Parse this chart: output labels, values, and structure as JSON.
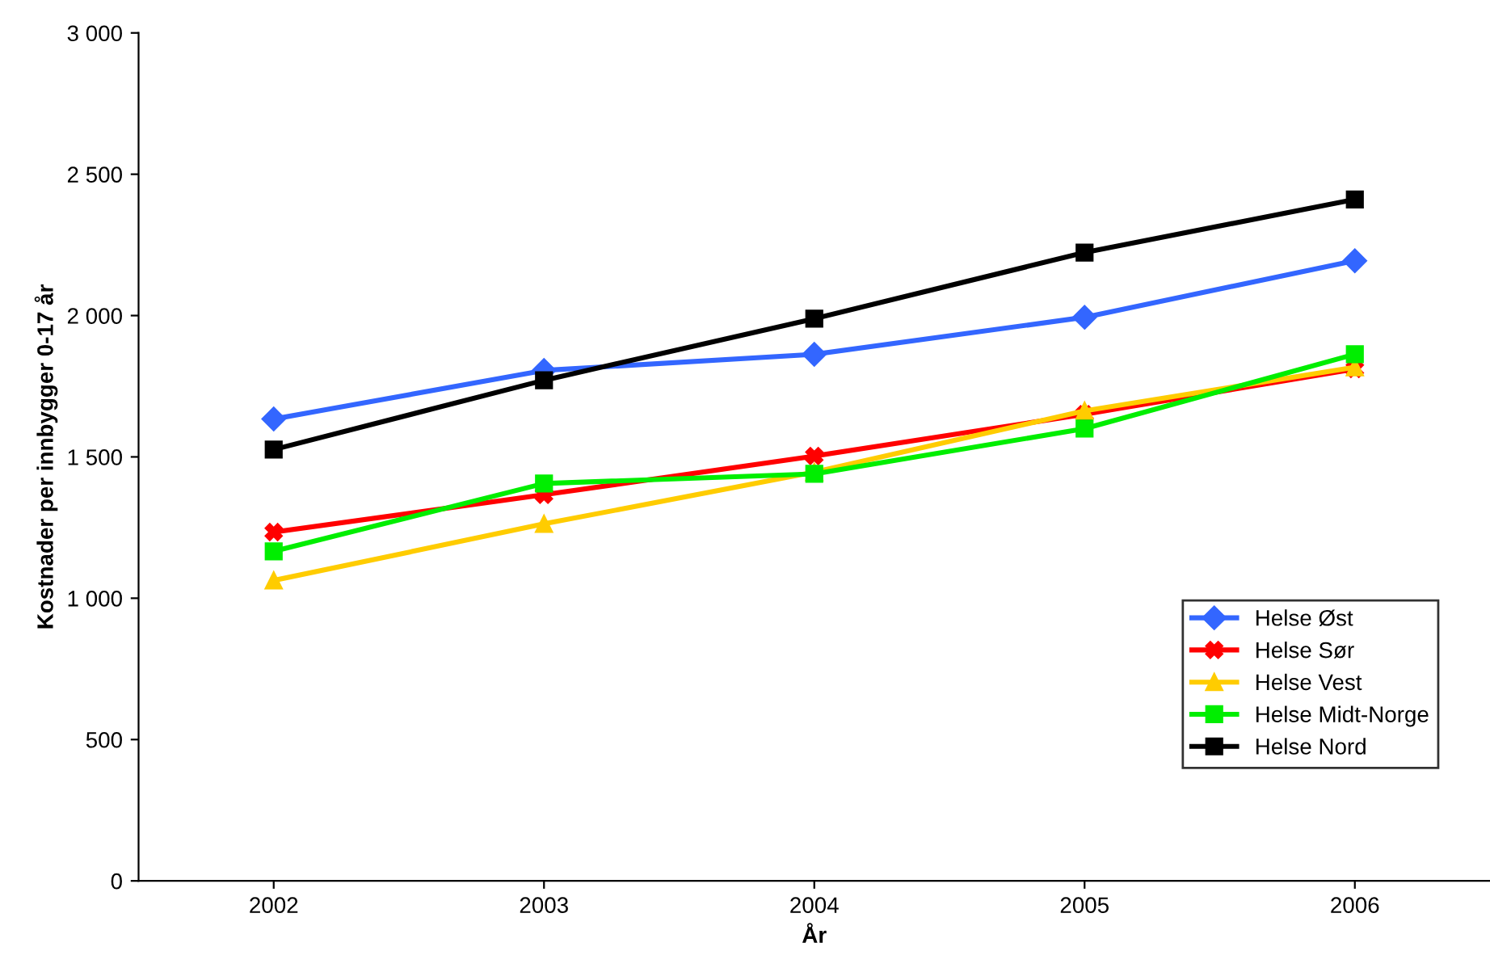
{
  "chart_data": {
    "type": "line",
    "xlabel": "År",
    "ylabel": "Kostnader per innbygger 0-17 år",
    "categories": [
      "2002",
      "2003",
      "2004",
      "2005",
      "2006"
    ],
    "series": [
      {
        "name": "Helse Øst",
        "color": "#3366ff",
        "marker": "diamond",
        "values": [
          1634,
          1806,
          1863,
          1994,
          2194
        ]
      },
      {
        "name": "Helse Sør",
        "color": "#ff0000",
        "marker": "cross",
        "values": [
          1234,
          1366,
          1503,
          1651,
          1811
        ]
      },
      {
        "name": "Helse Vest",
        "color": "#ffcc00",
        "marker": "triangle",
        "values": [
          1063,
          1263,
          1446,
          1663,
          1817
        ]
      },
      {
        "name": "Helse Midt-Norge",
        "color": "#00ee00",
        "marker": "square",
        "values": [
          1166,
          1406,
          1440,
          1600,
          1863
        ]
      },
      {
        "name": "Helse Nord",
        "color": "#000000",
        "marker": "square",
        "values": [
          1526,
          1771,
          1989,
          2223,
          2411
        ]
      }
    ],
    "ylim": [
      0,
      3000
    ],
    "yticks": [
      0,
      500,
      {
        "value": 1000,
        "label": "1 000"
      },
      {
        "value": 1500,
        "label": "1 500"
      },
      {
        "value": 2000,
        "label": "2 000"
      },
      {
        "value": 2500,
        "label": "2 500"
      },
      {
        "value": 3000,
        "label": "3 000"
      }
    ],
    "grid": false,
    "legend": "bottom right",
    "line_style": "solid"
  }
}
